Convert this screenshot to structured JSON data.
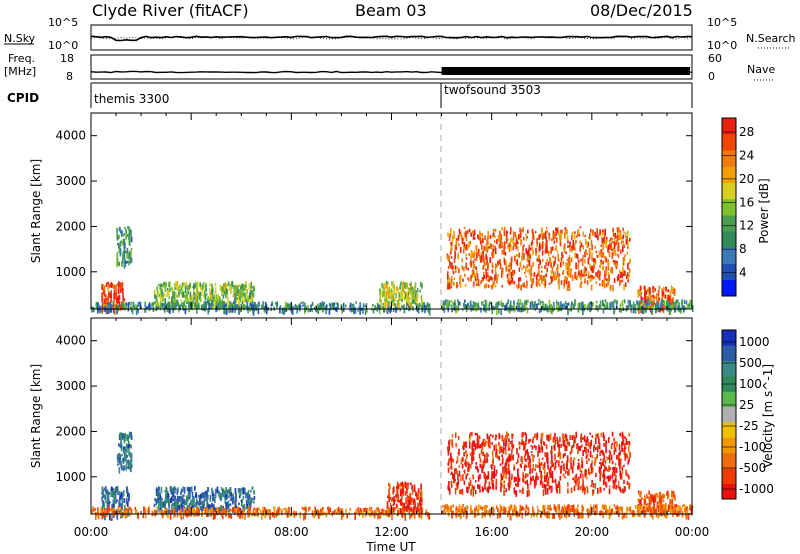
{
  "header": {
    "station": "Clyde River (fitACF)",
    "beam": "Beam 03",
    "date": "08/Dec/2015"
  },
  "labels": {
    "nsky": "N.Sky",
    "nsearch": "N.Search",
    "freq": "Freq.",
    "freq_unit": "[MHz]",
    "nave": "Nave",
    "cpid": "CPID",
    "nsky_ticks": [
      "10^5",
      "10^0"
    ],
    "freq_ticks": [
      "18",
      "8"
    ],
    "nave_ticks": [
      "60",
      "0"
    ]
  },
  "cpid_segments": [
    {
      "name": "themis 3300",
      "start_hour": 0,
      "end_hour": 14
    },
    {
      "name": "twofsound 3503",
      "start_hour": 14,
      "end_hour": 24
    }
  ],
  "colors": {
    "power_scale": [
      "#0018f8",
      "#2050b0",
      "#3a7ab8",
      "#2e8a58",
      "#4aa050",
      "#7ec22c",
      "#d8d020",
      "#f0a000",
      "#f07c10",
      "#f04800",
      "#e82010"
    ],
    "velocity_scale": [
      "#1830b8",
      "#2f5ca8",
      "#3a8a88",
      "#2e8a58",
      "#58b84a",
      "#b0b0b0",
      "#f0c000",
      "#f09800",
      "#f06c10",
      "#f03a00",
      "#e81010"
    ]
  },
  "chart_data": [
    {
      "type": "heatmap",
      "title": "",
      "quantity": "Power",
      "xlabel": "",
      "ylabel": "Slant Range [km]",
      "xlim": [
        0,
        24
      ],
      "ylim": [
        180,
        4500
      ],
      "y_ticks": [
        1000,
        2000,
        3000,
        4000
      ],
      "colorbar": {
        "label": "Power [dB]",
        "ticks": [
          4,
          8,
          12,
          16,
          20,
          24,
          28
        ]
      },
      "echo_regions": [
        {
          "t": [
            0.4,
            1.3
          ],
          "r": [
            180,
            800
          ],
          "level": 28
        },
        {
          "t": [
            1.0,
            1.6
          ],
          "r": [
            1200,
            2000
          ],
          "level": 10
        },
        {
          "t": [
            2.5,
            6.5
          ],
          "r": [
            250,
            800
          ],
          "level": 14
        },
        {
          "t": [
            0,
            13.5
          ],
          "r": [
            180,
            350
          ],
          "level": 8
        },
        {
          "t": [
            11.5,
            13.2
          ],
          "r": [
            300,
            800
          ],
          "level": 16
        },
        {
          "t": [
            14.2,
            21.5
          ],
          "r": [
            700,
            2000
          ],
          "level": 26
        },
        {
          "t": [
            21.8,
            23.3
          ],
          "r": [
            200,
            700
          ],
          "level": 26
        },
        {
          "t": [
            14.0,
            24.0
          ],
          "r": [
            180,
            400
          ],
          "level": 10
        }
      ]
    },
    {
      "type": "heatmap",
      "title": "",
      "quantity": "Velocity",
      "xlabel": "Time UT",
      "ylabel": "Slant Range [km]",
      "xlim": [
        0,
        24
      ],
      "ylim": [
        180,
        4500
      ],
      "x_ticks": [
        "00:00",
        "04:00",
        "08:00",
        "12:00",
        "16:00",
        "20:00",
        "00:00"
      ],
      "y_ticks": [
        1000,
        2000,
        3000,
        4000
      ],
      "colorbar": {
        "label": "Velocity [m s^-1]",
        "ticks": [
          1000,
          500,
          100,
          25,
          -25,
          -100,
          -500,
          -1000
        ]
      },
      "echo_regions": [
        {
          "t": [
            0.4,
            1.5
          ],
          "r": [
            180,
            800
          ],
          "level": 120
        },
        {
          "t": [
            1.0,
            1.6
          ],
          "r": [
            1200,
            2000
          ],
          "level": 80
        },
        {
          "t": [
            2.5,
            6.5
          ],
          "r": [
            250,
            800
          ],
          "level": 150
        },
        {
          "t": [
            0,
            13.5
          ],
          "r": [
            180,
            350
          ],
          "level": -60
        },
        {
          "t": [
            11.8,
            13.2
          ],
          "r": [
            300,
            900
          ],
          "level": -400
        },
        {
          "t": [
            14.2,
            21.5
          ],
          "r": [
            700,
            2000
          ],
          "level": -600
        },
        {
          "t": [
            21.8,
            23.3
          ],
          "r": [
            200,
            700
          ],
          "level": -80
        },
        {
          "t": [
            14.0,
            24.0
          ],
          "r": [
            180,
            400
          ],
          "level": -60
        }
      ]
    }
  ]
}
